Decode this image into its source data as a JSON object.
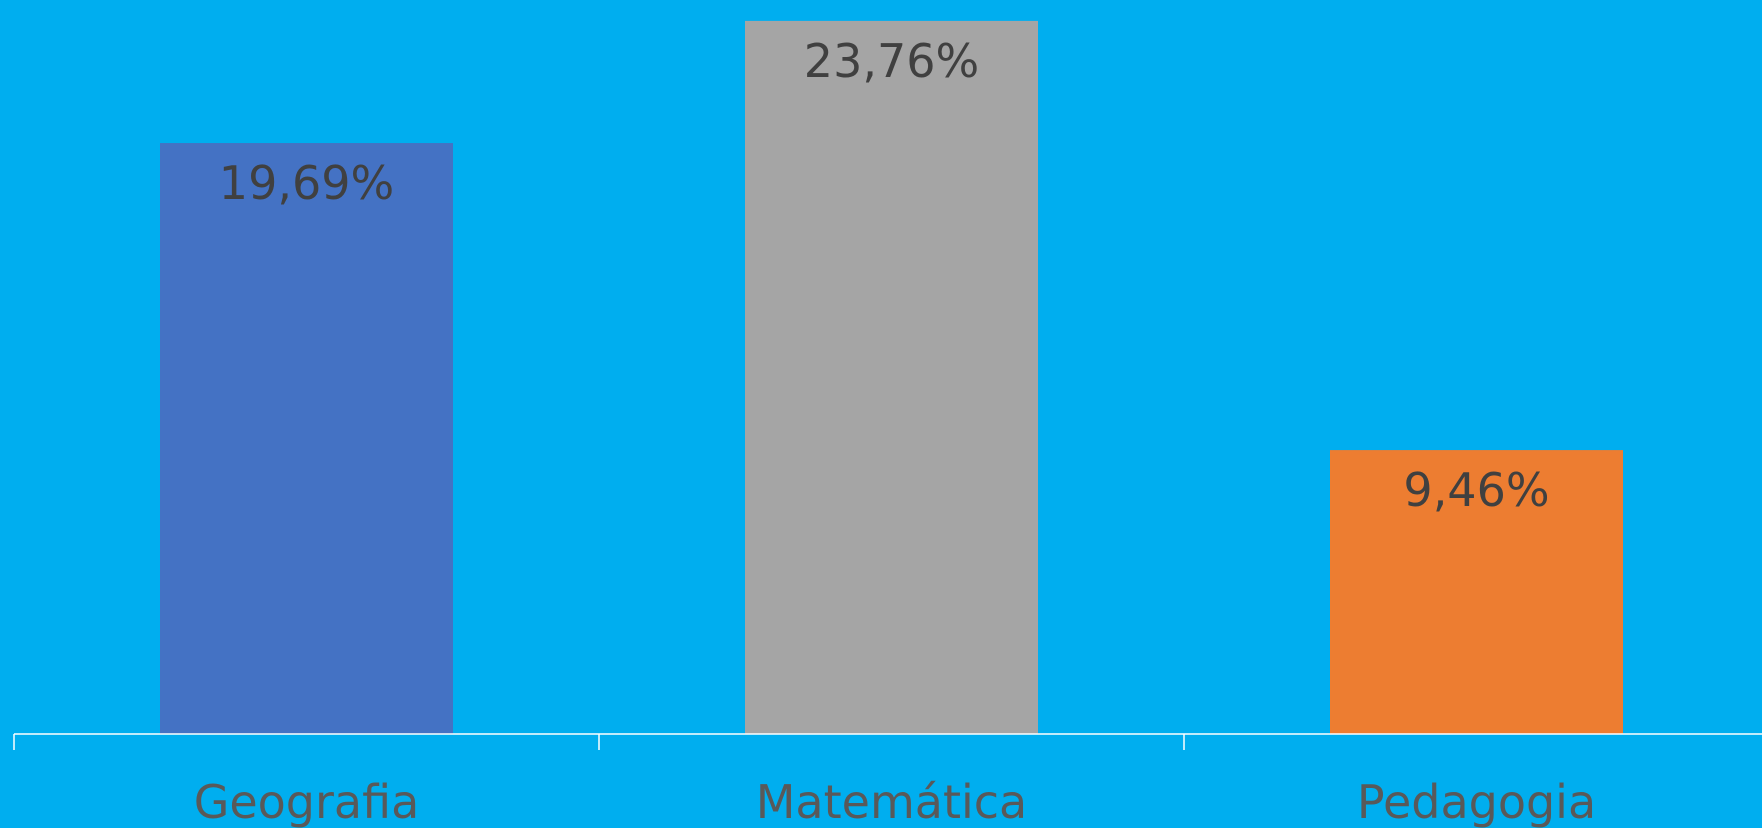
{
  "chart_data": {
    "type": "bar",
    "categories": [
      "Geografia",
      "Matemática",
      "Pedagogia"
    ],
    "values": [
      19.69,
      23.76,
      9.46
    ],
    "value_labels": [
      "19,69%",
      "23,76%",
      "9,46%"
    ],
    "colors": [
      "#4472C4",
      "#A5A5A5",
      "#ED7D31"
    ],
    "background": "#00AEEF",
    "axis_color": "#FFFFFF",
    "ylim": [
      0,
      24.09
    ],
    "grid": false,
    "legend": "none",
    "title": "",
    "xlabel": "",
    "ylabel": ""
  }
}
